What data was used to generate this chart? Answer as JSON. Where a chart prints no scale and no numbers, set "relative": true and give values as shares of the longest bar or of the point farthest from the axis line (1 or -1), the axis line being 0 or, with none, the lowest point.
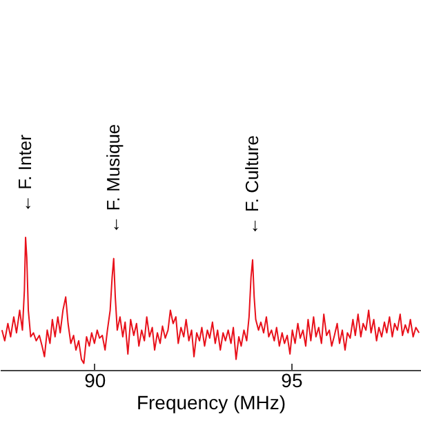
{
  "chart_data": {
    "type": "line",
    "relative": true,
    "xlabel": "Frequency (MHz)",
    "xlim": [
      87.6,
      98.3
    ],
    "xticks": [
      90,
      95
    ],
    "grid": false,
    "x": [
      87.65,
      87.72,
      87.8,
      87.87,
      87.95,
      88.02,
      88.1,
      88.17,
      88.22,
      88.25,
      88.28,
      88.32,
      88.38,
      88.45,
      88.52,
      88.6,
      88.67,
      88.73,
      88.8,
      88.87,
      88.93,
      89.0,
      89.07,
      89.13,
      89.2,
      89.27,
      89.33,
      89.4,
      89.47,
      89.53,
      89.6,
      89.67,
      89.73,
      89.8,
      89.87,
      89.93,
      90.0,
      90.07,
      90.13,
      90.2,
      90.27,
      90.33,
      90.4,
      90.45,
      90.49,
      90.53,
      90.58,
      90.65,
      90.72,
      90.78,
      90.85,
      90.92,
      91.0,
      91.07,
      91.13,
      91.2,
      91.27,
      91.33,
      91.4,
      91.47,
      91.53,
      91.6,
      91.67,
      91.73,
      91.8,
      91.87,
      91.93,
      92.0,
      92.07,
      92.13,
      92.2,
      92.27,
      92.33,
      92.4,
      92.47,
      92.53,
      92.6,
      92.67,
      92.73,
      92.8,
      92.87,
      92.93,
      93.0,
      93.07,
      93.13,
      93.2,
      93.27,
      93.33,
      93.4,
      93.47,
      93.53,
      93.6,
      93.67,
      93.73,
      93.8,
      93.87,
      93.93,
      93.98,
      94.02,
      94.06,
      94.1,
      94.17,
      94.23,
      94.3,
      94.37,
      94.43,
      94.5,
      94.57,
      94.63,
      94.7,
      94.77,
      94.83,
      94.9,
      94.97,
      95.03,
      95.1,
      95.17,
      95.23,
      95.3,
      95.37,
      95.43,
      95.5,
      95.57,
      95.63,
      95.7,
      95.77,
      95.83,
      95.9,
      95.97,
      96.03,
      96.1,
      96.17,
      96.23,
      96.3,
      96.37,
      96.43,
      96.5,
      96.57,
      96.63,
      96.7,
      96.77,
      96.83,
      96.9,
      96.97,
      97.03,
      97.1,
      97.17,
      97.23,
      97.3,
      97.37,
      97.43,
      97.5,
      97.57,
      97.63,
      97.7,
      97.77,
      97.83,
      97.9,
      97.97,
      98.03,
      98.1,
      98.17,
      98.25
    ],
    "series": [
      {
        "color": "#e8101a",
        "values": [
          0.3,
          0.22,
          0.35,
          0.25,
          0.4,
          0.28,
          0.45,
          0.3,
          0.6,
          1.0,
          0.85,
          0.45,
          0.25,
          0.28,
          0.22,
          0.26,
          0.18,
          0.1,
          0.3,
          0.2,
          0.38,
          0.25,
          0.4,
          0.28,
          0.45,
          0.55,
          0.35,
          0.2,
          0.26,
          0.15,
          0.22,
          0.08,
          0.05,
          0.25,
          0.18,
          0.28,
          0.2,
          0.3,
          0.24,
          0.26,
          0.15,
          0.3,
          0.45,
          0.7,
          0.84,
          0.55,
          0.3,
          0.4,
          0.25,
          0.36,
          0.12,
          0.38,
          0.26,
          0.35,
          0.18,
          0.3,
          0.22,
          0.4,
          0.25,
          0.32,
          0.15,
          0.28,
          0.2,
          0.33,
          0.24,
          0.3,
          0.45,
          0.35,
          0.4,
          0.2,
          0.32,
          0.25,
          0.38,
          0.22,
          0.3,
          0.1,
          0.28,
          0.22,
          0.32,
          0.18,
          0.3,
          0.24,
          0.36,
          0.2,
          0.3,
          0.15,
          0.28,
          0.22,
          0.3,
          0.2,
          0.32,
          0.08,
          0.25,
          0.18,
          0.3,
          0.22,
          0.4,
          0.7,
          0.83,
          0.55,
          0.38,
          0.3,
          0.36,
          0.28,
          0.4,
          0.25,
          0.3,
          0.22,
          0.32,
          0.18,
          0.28,
          0.2,
          0.26,
          0.12,
          0.3,
          0.2,
          0.35,
          0.24,
          0.3,
          0.18,
          0.38,
          0.22,
          0.4,
          0.25,
          0.32,
          0.2,
          0.42,
          0.26,
          0.3,
          0.18,
          0.26,
          0.35,
          0.2,
          0.3,
          0.15,
          0.28,
          0.24,
          0.38,
          0.26,
          0.42,
          0.25,
          0.35,
          0.3,
          0.45,
          0.28,
          0.38,
          0.22,
          0.32,
          0.25,
          0.36,
          0.28,
          0.4,
          0.25,
          0.35,
          0.3,
          0.42,
          0.26,
          0.34,
          0.28,
          0.38,
          0.25,
          0.32,
          0.28
        ]
      }
    ],
    "annotations": [
      {
        "text": "← F. Inter",
        "x": 88.25,
        "y": 1.0
      },
      {
        "text": "← F. Musique",
        "x": 90.49,
        "y": 0.84
      },
      {
        "text": "← F. Culture",
        "x": 94.02,
        "y": 0.83
      }
    ]
  }
}
